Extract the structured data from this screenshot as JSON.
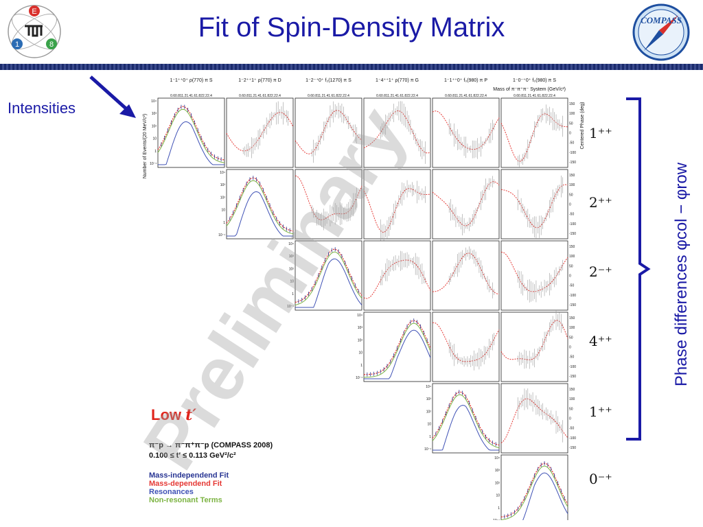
{
  "slide": {
    "title": "Fit of Spin-Density Matrix",
    "intensities_label": "Intensities",
    "phase_label": "Phase differences φcol − φrow",
    "low_t_label": "Low",
    "low_t_var": "t′",
    "reaction_line1": "π⁻p → π⁻π⁺π⁻p (COMPASS 2008)",
    "reaction_line2": "0.100 ≤ t′ ≤ 0.113 GeV²/c²",
    "watermark": "Preliminary",
    "compass_logo_text": "COMPASS"
  },
  "logo_tum": {
    "letters": [
      "E",
      "1",
      "8"
    ]
  },
  "colors": {
    "title": "#1a1aa6",
    "accent_red": "#e0241b",
    "mass_independent": "#283593",
    "mass_dependent": "#e53935",
    "resonances": "#3f51b5",
    "non_resonant": "#7cb342"
  },
  "chart_data": {
    "type": "line",
    "x_axis_label": "Mass of π⁻π⁺π⁻ System (GeV/c²)",
    "x_ticks": [
      "0.6",
      "0.8",
      "1",
      "1.2",
      "1.4",
      "1.6",
      "1.8",
      "2",
      "2.2",
      "2.4"
    ],
    "y_left_label": "Number of Events/(20 MeV/c²)",
    "y_right_label": "Centered Phase (deg)",
    "y_log_ticks": [
      "10⁻¹",
      "1",
      "10",
      "10²",
      "10³",
      "10⁴"
    ],
    "y_phase_ticks": [
      "150",
      "100",
      "50",
      "0",
      "-50",
      "-100",
      "-150"
    ],
    "columns": [
      "1⁻1⁺⁺0⁺ ρ(770) π S",
      "1⁻2⁺⁺1⁺ ρ(770) π D",
      "1⁻2⁻⁺0⁺ f₂(1270) π S",
      "1⁻4⁺⁺1⁺ ρ(770) π G",
      "1⁻1⁺⁺0⁺ f₀(980) π P",
      "1⁻0⁻⁺0⁺ f₀(980) π S"
    ],
    "rows": [
      "1⁺⁺",
      "2⁺⁺",
      "2⁻⁺",
      "4⁺⁺",
      "1⁺⁺",
      "0⁻⁺"
    ],
    "legend": [
      {
        "label": "Mass-independend Fit",
        "color": "#283593"
      },
      {
        "label": "Mass-dependend Fit",
        "color": "#e53935"
      },
      {
        "label": "Resonances",
        "color": "#3f51b5"
      },
      {
        "label": "Non-resonant Terms",
        "color": "#7cb342"
      }
    ],
    "intensity_peaks_gev": [
      1.25,
      1.3,
      1.68,
      2.0,
      1.32,
      1.8
    ]
  }
}
